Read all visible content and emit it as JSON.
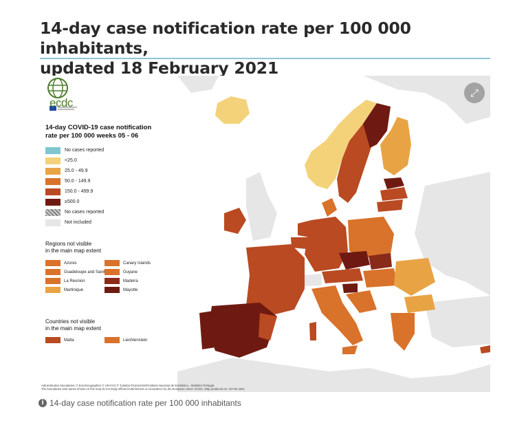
{
  "header": {
    "title_line1": "14-day case notification rate per 100 000 inhabitants,",
    "title_line2": "updated 18 February 2021"
  },
  "map": {
    "logo_text": "ecdc",
    "expand_icon": "expand-icon",
    "legend": {
      "title_line1": "14-day COVID-19 case notification",
      "title_line2": "rate per 100 000 weeks  05 - 06",
      "items": [
        {
          "label": "No cases reported",
          "color": "#7fc6cf"
        },
        {
          "label": "<25.0",
          "color": "#f3d27a"
        },
        {
          "label": "25.0 - 49.9",
          "color": "#e8a444"
        },
        {
          "label": "50.0 - 149.9",
          "color": "#d9722a"
        },
        {
          "label": "150.0 - 499.9",
          "color": "#b94a22"
        },
        {
          "label": "≥500.0",
          "color": "#6e1a12"
        },
        {
          "label": "No cases reported",
          "color": "hatch"
        },
        {
          "label": "Not included",
          "color": "#e6e6e6"
        }
      ]
    },
    "regions_section": {
      "title_line1": "Regions not visible",
      "title_line2": "in the main map extent",
      "left": [
        {
          "label": "Azores",
          "color": "#d9722a"
        },
        {
          "label": "Guadeloupe and Saint Martin",
          "color": "#d9722a"
        },
        {
          "label": "La Reunion",
          "color": "#d9722a"
        },
        {
          "label": "Martinique",
          "color": "#e8a444"
        }
      ],
      "right": [
        {
          "label": "Canary Islands",
          "color": "#d9722a"
        },
        {
          "label": "Guyane",
          "color": "#d9722a"
        },
        {
          "label": "Madeira",
          "color": "#8a2a18"
        },
        {
          "label": "Mayotte",
          "color": "#6e1a12"
        }
      ]
    },
    "countries_section": {
      "title_line1": "Countries not visible",
      "title_line2": "in the main map extent",
      "items": [
        {
          "label": "Malta",
          "color": "#b94a22"
        },
        {
          "label": "Liechtenstein",
          "color": "#d9722a"
        }
      ]
    },
    "footnote_line1": "Administrative boundaries: © EuroGeographics © UN-FAO © Turkstat ©Kartverket©Instituto Nacional de Estatística - Statistics Portugal.",
    "footnote_line2": "The boundaries and names shown on this map do not imply official endorsement or acceptance by the European Union. ECDC. Map produced on: 18 Feb 2021"
  },
  "caption": {
    "text": "14-day case notification rate per 100 000 inhabitants",
    "icon": "info-icon"
  }
}
